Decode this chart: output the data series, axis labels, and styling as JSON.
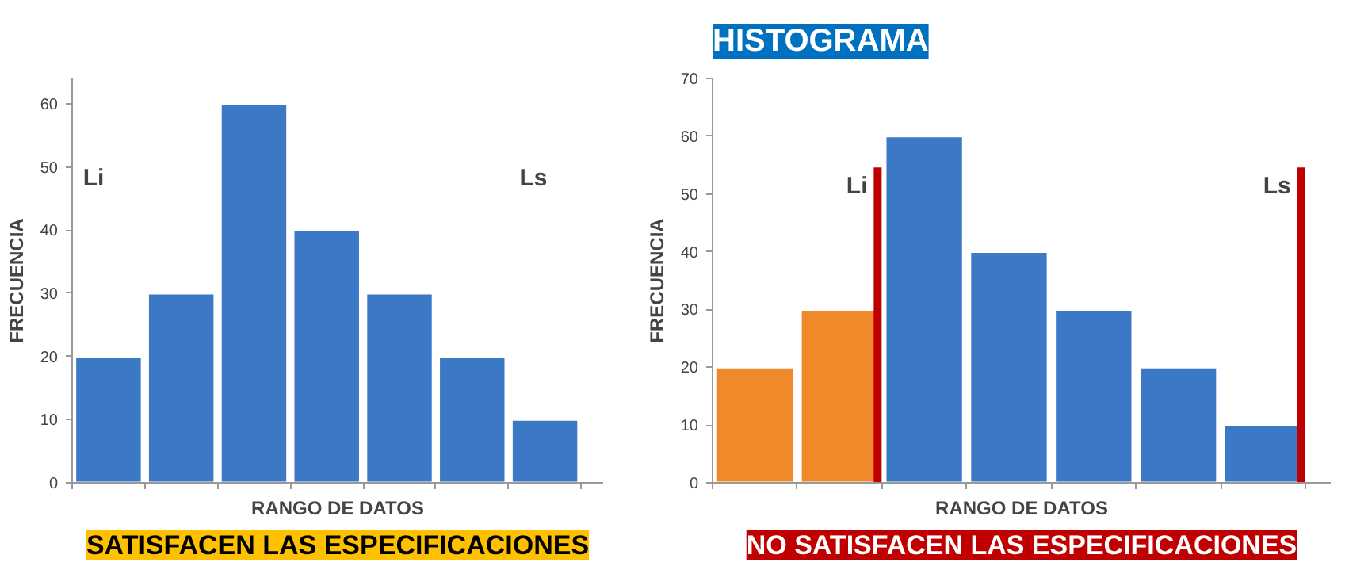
{
  "chart_data": [
    {
      "type": "bar",
      "subtitle": "SATISFACEN LAS ESPECIFICACIONES",
      "xlabel": "RANGO DE DATOS",
      "ylabel": "FRECUENCIA",
      "categories": [
        null,
        null,
        null,
        null,
        null,
        null,
        null
      ],
      "values": [
        20,
        30,
        60,
        40,
        30,
        20,
        10
      ],
      "colors": [
        "#3b78c6",
        "#3b78c6",
        "#3b78c6",
        "#3b78c6",
        "#3b78c6",
        "#3b78c6",
        "#3b78c6"
      ],
      "ylim": [
        0,
        64
      ],
      "yticks": [
        0,
        10,
        20,
        30,
        40,
        50,
        60
      ],
      "tick_labels": "y",
      "annotations": [
        "Li",
        "Ls"
      ]
    },
    {
      "type": "bar",
      "title": "HISTOGRAMA",
      "subtitle": "NO SATISFACEN LAS ESPECIFICACIONES",
      "xlabel": "RANGO DE DATOS",
      "ylabel": "FRECUENCIA",
      "categories": [
        null,
        null,
        null,
        null,
        null,
        null,
        null
      ],
      "values": [
        20,
        30,
        60,
        40,
        30,
        20,
        10
      ],
      "colors": [
        "#f0892a",
        "#f0892a",
        "#3b78c6",
        "#3b78c6",
        "#3b78c6",
        "#3b78c6",
        "#3b78c6"
      ],
      "ylim": [
        0,
        70
      ],
      "yticks": [
        0,
        10,
        20,
        30,
        40,
        50,
        60,
        70
      ],
      "tick_labels": "y",
      "annotations": [
        "Li",
        "Ls"
      ]
    }
  ]
}
